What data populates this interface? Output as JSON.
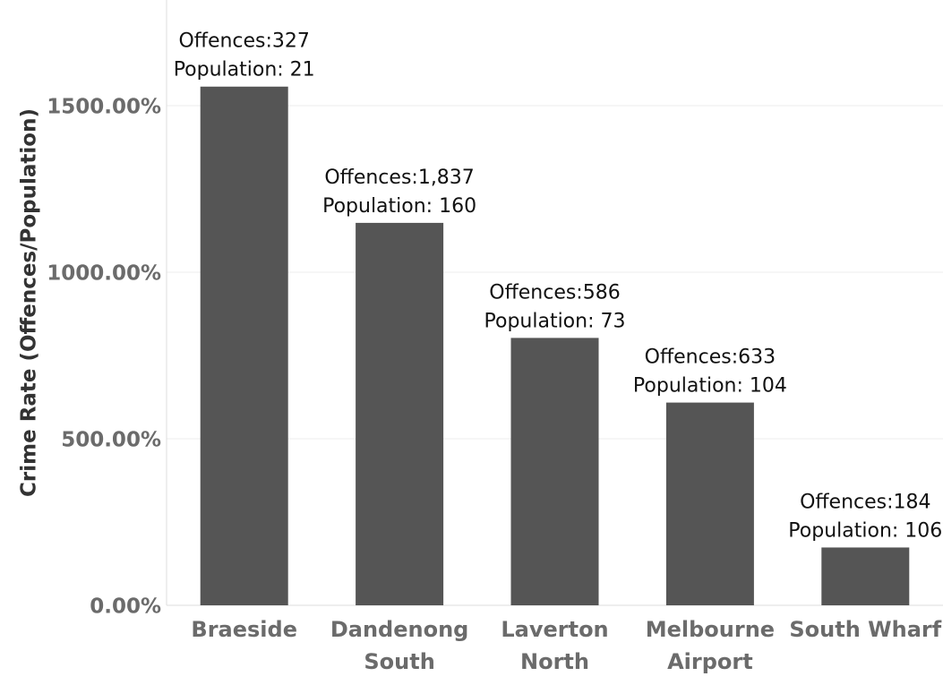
{
  "chart_data": {
    "type": "bar",
    "ylabel": "Crime Rate (Offences/Population)",
    "xlabel": "",
    "categories": [
      {
        "lines": [
          "Braeside"
        ]
      },
      {
        "lines": [
          "Dandenong",
          "South"
        ]
      },
      {
        "lines": [
          "Laverton",
          "North"
        ]
      },
      {
        "lines": [
          "Melbourne",
          "Airport"
        ]
      },
      {
        "lines": [
          "South Wharf"
        ]
      }
    ],
    "values": [
      1557.14,
      1148.13,
      802.74,
      608.65,
      173.58
    ],
    "annotations": [
      {
        "offences": "Offences:327",
        "population": "Population: 21"
      },
      {
        "offences": "Offences:1,837",
        "population": "Population: 160"
      },
      {
        "offences": "Offences:586",
        "population": "Population: 73"
      },
      {
        "offences": "Offences:633",
        "population": "Population: 104"
      },
      {
        "offences": "Offences:184",
        "population": "Population: 106"
      }
    ],
    "yticks": [
      {
        "value": 0,
        "label": "0.00%"
      },
      {
        "value": 500,
        "label": "500.00%"
      },
      {
        "value": 1000,
        "label": "1000.00%"
      },
      {
        "value": 1500,
        "label": "1500.00%"
      }
    ],
    "ylim": [
      0,
      1500
    ],
    "grid": true,
    "colors": {
      "bar": "#555555",
      "grid": "#eeeeee",
      "axis": "#dddddd"
    }
  }
}
